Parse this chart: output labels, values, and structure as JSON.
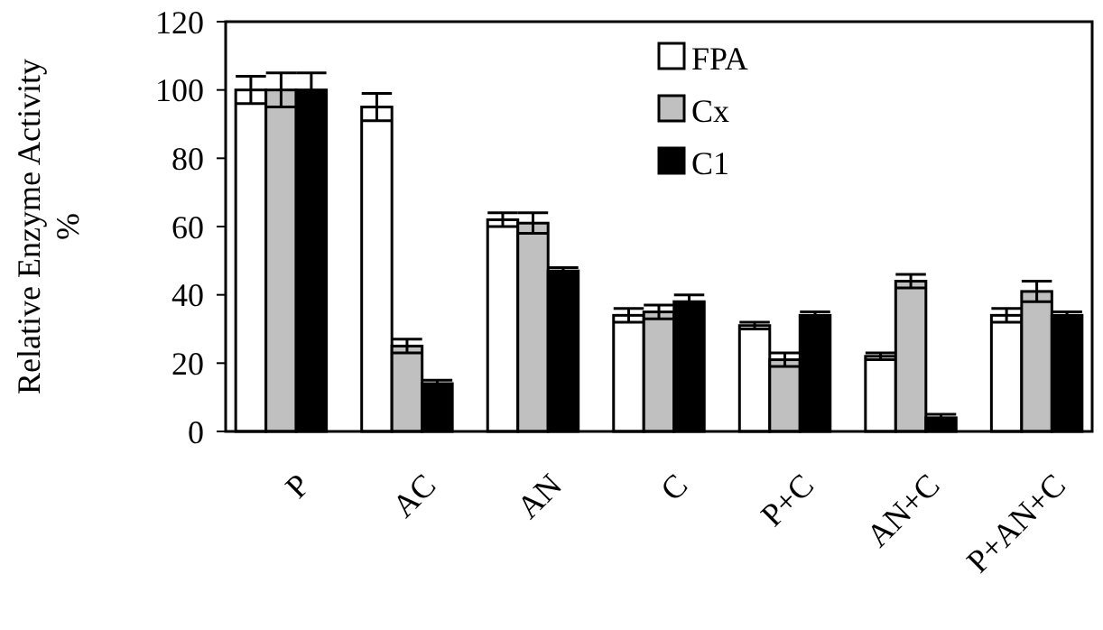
{
  "chart_data": {
    "type": "bar",
    "ylabel": "Relative Enzyme Activity\n%",
    "categories": [
      "P",
      "AC",
      "AN",
      "C",
      "P+C",
      "AN+C",
      "P+AN+C"
    ],
    "ylim": [
      0,
      120
    ],
    "yticks": [
      0,
      20,
      40,
      60,
      80,
      100,
      120
    ],
    "legend": "top",
    "series": [
      {
        "name": "FPA",
        "color": "#ffffff",
        "values": [
          100,
          95,
          62,
          34,
          31,
          22,
          34
        ],
        "errors": [
          4,
          4,
          2,
          2,
          1,
          1,
          2
        ]
      },
      {
        "name": "Cx",
        "color": "#c0c0c0",
        "values": [
          100,
          25,
          61,
          35,
          21,
          44,
          41
        ],
        "errors": [
          5,
          2,
          3,
          2,
          2,
          2,
          3
        ]
      },
      {
        "name": "C1",
        "color": "#000000",
        "values": [
          100,
          14,
          47,
          38,
          34,
          4,
          34
        ],
        "errors": [
          5,
          1,
          1,
          2,
          1,
          1,
          1
        ]
      }
    ]
  }
}
